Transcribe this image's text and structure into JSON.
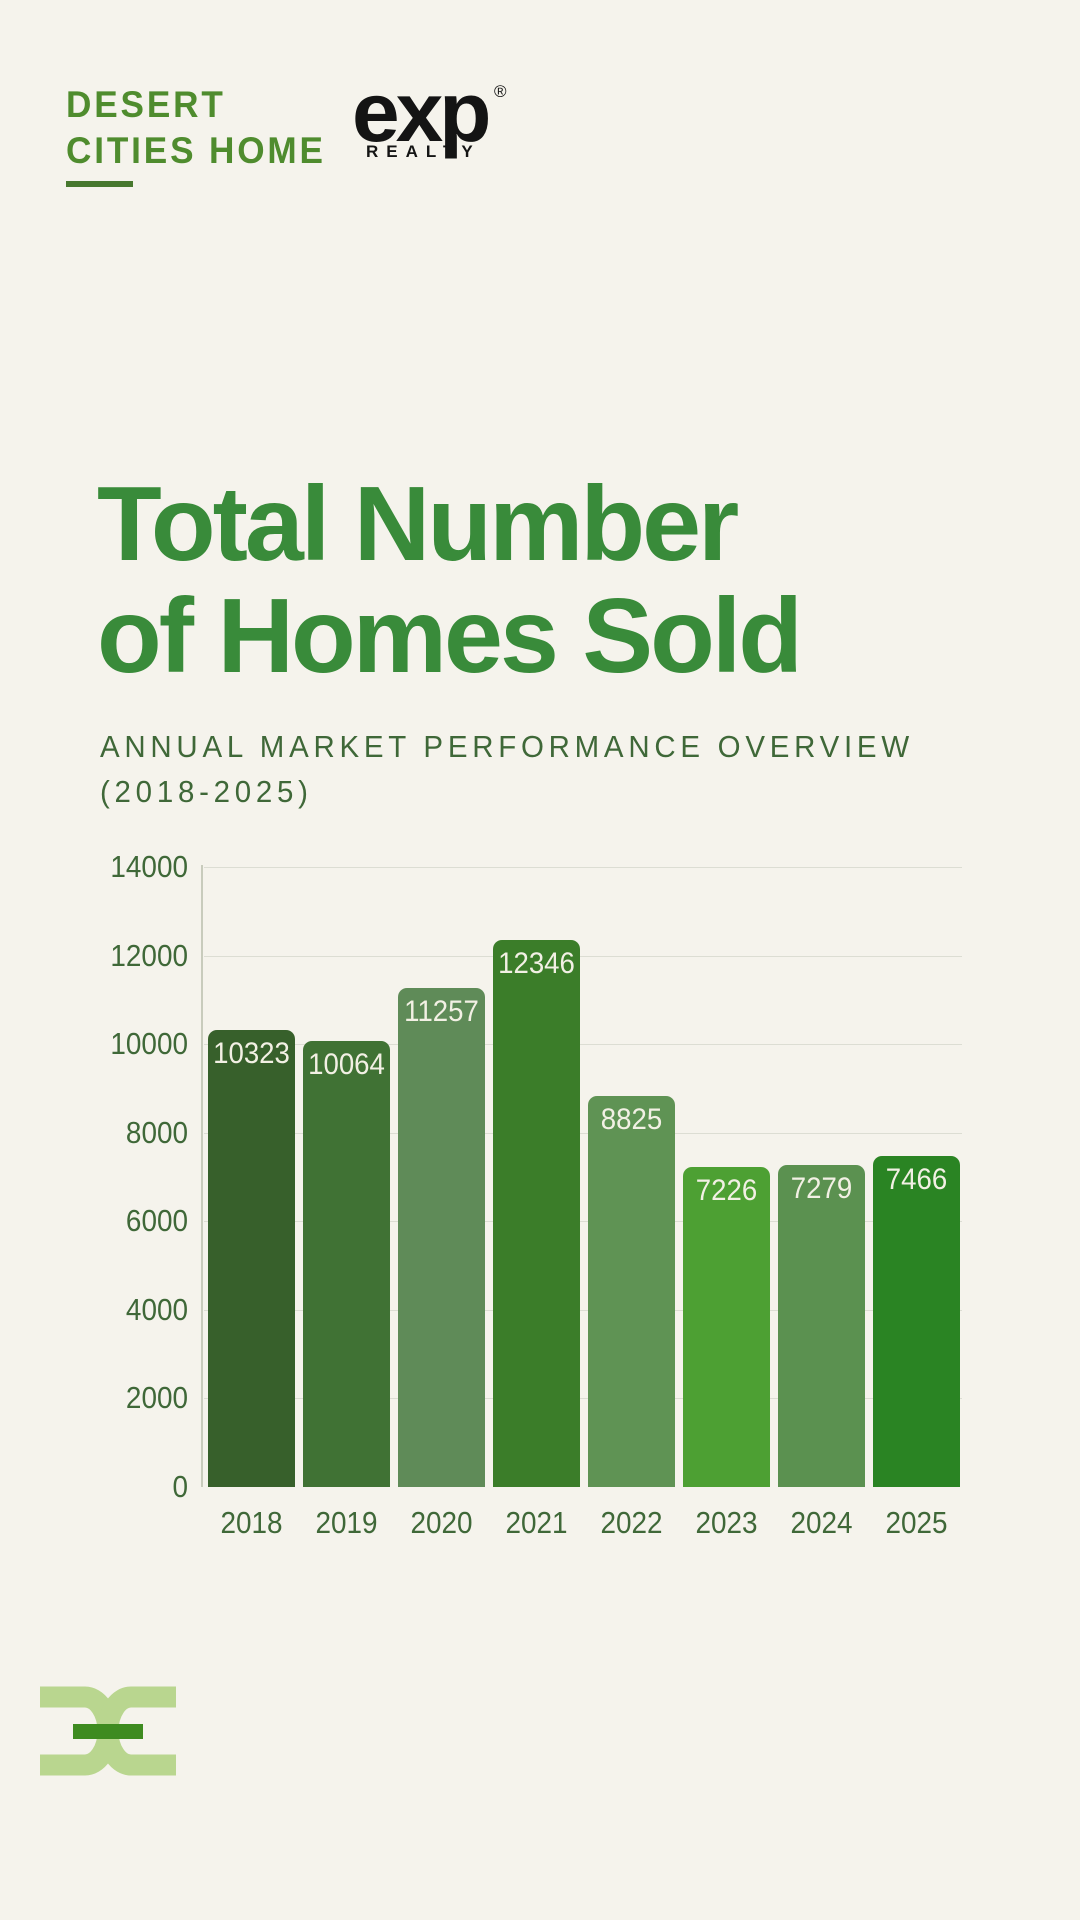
{
  "brand": {
    "line1": "DESERT",
    "line2": "CITIES HOME"
  },
  "exp_logo": {
    "word": "exp",
    "registered": "®",
    "subtext": "REALTY"
  },
  "title": {
    "line1": "Total Number",
    "line2": "of Homes Sold"
  },
  "subtitle": {
    "line1": "ANNUAL MARKET PERFORMANCE OVERVIEW",
    "line2": "(2018-2025)"
  },
  "chart_data": {
    "type": "bar",
    "title": "Total Number of Homes Sold",
    "xlabel": "",
    "ylabel": "",
    "categories": [
      "2018",
      "2019",
      "2020",
      "2021",
      "2022",
      "2023",
      "2024",
      "2025"
    ],
    "values": [
      10323,
      10064,
      11257,
      12346,
      8825,
      7226,
      7279,
      7466
    ],
    "value_labels": [
      "10323",
      "10064",
      "11257",
      "12346",
      "8825",
      "7226",
      "7279",
      "7466"
    ],
    "value_label_position": "inside-top",
    "bar_colors": [
      "#37602b",
      "#407234",
      "#5f8b58",
      "#3b7d29",
      "#5f9354",
      "#4da033",
      "#5b9150",
      "#2a8423"
    ],
    "ylim": [
      0,
      14000
    ],
    "yticks": [
      0,
      2000,
      4000,
      6000,
      8000,
      10000,
      12000,
      14000
    ],
    "grid": "horizontal",
    "legend": "none"
  },
  "colors": {
    "background": "#f5f3ec",
    "title_green": "#398b3a",
    "text_green": "#3f6838",
    "brand_green": "#4f8c2e",
    "underline_green": "#47782e",
    "gridline": "#dcddd3",
    "axis_line": "#c8cbbc",
    "bar_value_text": "#f2f0e4",
    "exp_black": "#141414",
    "monogram_light": "#b9d68f",
    "monogram_dark": "#3e8b20"
  },
  "icons": {
    "footer_monogram": "chain-link-dc-monogram"
  }
}
